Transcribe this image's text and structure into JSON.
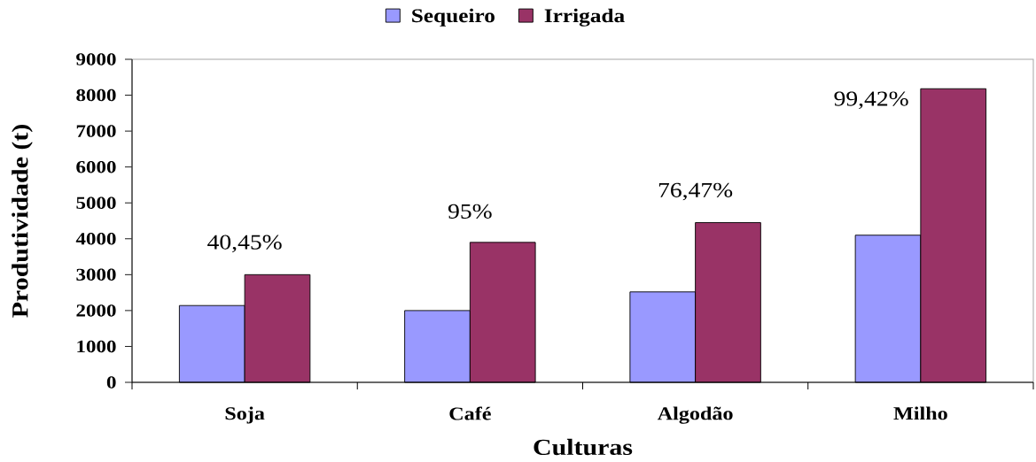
{
  "chart_data": {
    "type": "bar",
    "xlabel": "Culturas",
    "ylabel": "Produtividade (t)",
    "categories": [
      "Soja",
      "Café",
      "Algodão",
      "Milho"
    ],
    "series": [
      {
        "name": "Sequeiro",
        "color": "#9999ff",
        "values": [
          2140,
          2000,
          2520,
          4100
        ]
      },
      {
        "name": "Irrigada",
        "color": "#993366",
        "values": [
          3000,
          3900,
          4450,
          8180
        ]
      }
    ],
    "ylim": [
      0,
      9000
    ],
    "yticks": [
      0,
      1000,
      2000,
      3000,
      4000,
      5000,
      6000,
      7000,
      8000,
      9000
    ],
    "annotations": [
      "40,45%",
      "95%",
      "76,47%",
      "99,42%"
    ],
    "legend": "top"
  }
}
